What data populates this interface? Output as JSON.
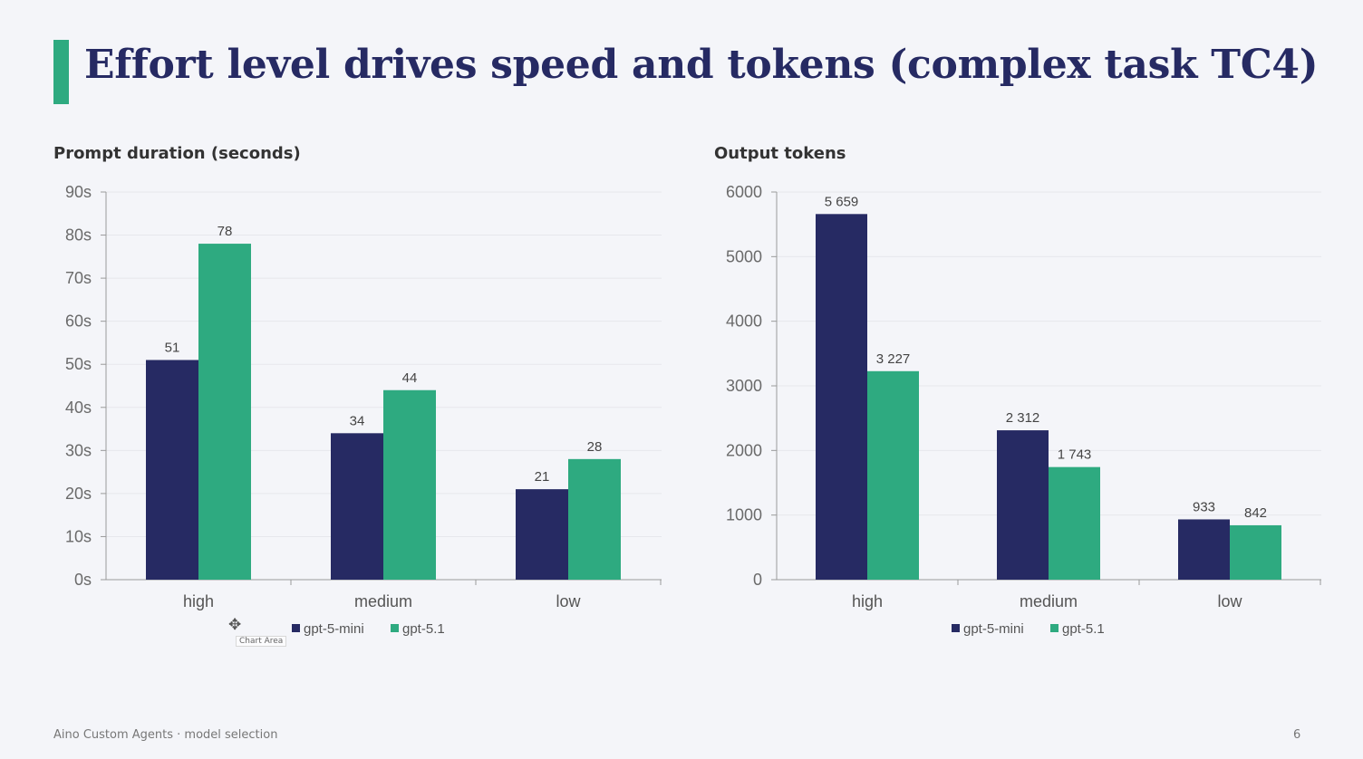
{
  "slide": {
    "title": "Effort level drives speed and tokens (complex task TC4)",
    "footer_text": "Aino Custom Agents · model selection",
    "page_number": "6",
    "cursor_tooltip": "Chart Area",
    "colors": {
      "accent": "#2eaa80",
      "title": "#262a63"
    }
  },
  "chart_data": [
    {
      "type": "bar",
      "title": "Prompt duration (seconds)",
      "categories": [
        "high",
        "medium",
        "low"
      ],
      "series": [
        {
          "name": "gpt-5-mini",
          "values": [
            51,
            34,
            21
          ],
          "color": "#262a63"
        },
        {
          "name": "gpt-5.1",
          "values": [
            78,
            44,
            28
          ],
          "color": "#2eaa80"
        }
      ],
      "data_labels": [
        [
          "51",
          "34",
          "21"
        ],
        [
          "78",
          "44",
          "28"
        ]
      ],
      "ylim": [
        0,
        90
      ],
      "yticks": [
        0,
        10,
        20,
        30,
        40,
        50,
        60,
        70,
        80,
        90
      ],
      "ytick_labels": [
        "0s",
        "10s",
        "20s",
        "30s",
        "40s",
        "50s",
        "60s",
        "70s",
        "80s",
        "90s"
      ],
      "grid": true,
      "legend": "bottom"
    },
    {
      "type": "bar",
      "title": "Output tokens",
      "categories": [
        "high",
        "medium",
        "low"
      ],
      "series": [
        {
          "name": "gpt-5-mini",
          "values": [
            5659,
            2312,
            933
          ],
          "color": "#262a63"
        },
        {
          "name": "gpt-5.1",
          "values": [
            3227,
            1743,
            842
          ],
          "color": "#2eaa80"
        }
      ],
      "data_labels": [
        [
          "5 659",
          "2 312",
          "933"
        ],
        [
          "3 227",
          "1 743",
          "842"
        ]
      ],
      "ylim": [
        0,
        6000
      ],
      "yticks": [
        0,
        1000,
        2000,
        3000,
        4000,
        5000,
        6000
      ],
      "ytick_labels": [
        "0",
        "1000",
        "2000",
        "3000",
        "4000",
        "5000",
        "6000"
      ],
      "grid": true,
      "legend": "bottom"
    }
  ]
}
